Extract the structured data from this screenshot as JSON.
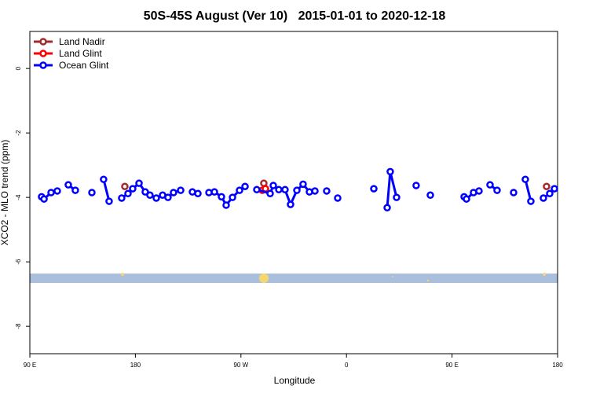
{
  "chart_data": {
    "type": "line",
    "title": "50S-45S August (Ver 10)   2015-01-01 to 2020-12-18",
    "xlabel": "Longitude",
    "ylabel": "XCO2 - MLO trend (ppm)",
    "xlim": [
      90,
      540
    ],
    "ylim": [
      -8.85,
      1.15
    ],
    "xticks": [
      {
        "value": 90,
        "label": "90 E"
      },
      {
        "value": 180,
        "label": "180"
      },
      {
        "value": 270,
        "label": "90 W"
      },
      {
        "value": 360,
        "label": "0"
      },
      {
        "value": 450,
        "label": "90 E"
      },
      {
        "value": 540,
        "label": "180"
      }
    ],
    "yticks": [
      0,
      -2,
      -4,
      -6,
      -8
    ],
    "legend": "top-left",
    "series": [
      {
        "name": "Land Nadir",
        "color": "#a52a2a",
        "x": [
          171.0,
          null,
          289.5,
          null,
          530.6
        ],
        "values": [
          -3.66,
          null,
          -3.56,
          null,
          -3.66
        ]
      },
      {
        "name": "Land Glint",
        "color": "#ff0000",
        "x": [
          288.2,
          290.9
        ],
        "values": [
          -3.78,
          -3.73
        ]
      },
      {
        "name": "Ocean Glint",
        "color": "#0000ff",
        "x": [
          100.0,
          102.1,
          108.1,
          113.4,
          null,
          122.8,
          128.8,
          null,
          142.9,
          null,
          152.9,
          157.6,
          null,
          168.3,
          173.7,
          177.7,
          183.1,
          188.4,
          192.4,
          197.8,
          203.2,
          207.8,
          212.5,
          218.6,
          null,
          228.6,
          233.3,
          null,
          242.7,
          247.4,
          253.4,
          257.4,
          262.8,
          268.8,
          273.5,
          null,
          283.5,
          294.9,
          297.6,
          302.3,
          307.6,
          312.3,
          317.7,
          323.0,
          328.4,
          333.1,
          null,
          343.1,
          null,
          352.5,
          null,
          383.3,
          null,
          394.7,
          397.3,
          402.7,
          null,
          419.4,
          null,
          431.5,
          null,
          460.3,
          462.3,
          468.3,
          473.0,
          null,
          482.4,
          488.4,
          null,
          502.5,
          null,
          512.5,
          517.2,
          null,
          527.9,
          533.3,
          537.3
        ],
        "values": [
          -3.98,
          -4.05,
          -3.85,
          -3.8,
          null,
          -3.61,
          -3.78,
          null,
          -3.85,
          null,
          -3.44,
          -4.12,
          null,
          -4.02,
          -3.88,
          -3.73,
          -3.56,
          -3.83,
          -3.93,
          -4.02,
          -3.93,
          -4.0,
          -3.85,
          -3.78,
          null,
          -3.83,
          -3.88,
          null,
          -3.85,
          -3.83,
          -3.98,
          -4.24,
          -4.0,
          -3.78,
          -3.66,
          null,
          -3.76,
          -3.88,
          -3.63,
          -3.76,
          -3.76,
          -4.22,
          -3.78,
          -3.59,
          -3.83,
          -3.8,
          null,
          -3.8,
          null,
          -4.02,
          null,
          -3.73,
          null,
          -4.32,
          -3.2,
          -4.0,
          null,
          -3.63,
          null,
          -3.93,
          null,
          -3.98,
          -4.05,
          -3.85,
          -3.8,
          null,
          -3.61,
          -3.78,
          null,
          -3.85,
          null,
          -3.44,
          -4.12,
          null,
          -4.02,
          -3.88,
          -3.73
        ]
      }
    ]
  }
}
